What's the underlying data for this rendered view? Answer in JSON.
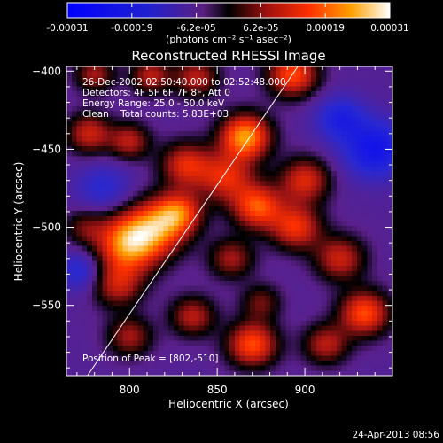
{
  "colorbar": {
    "tick_labels": [
      "-0.00031",
      "-0.00019",
      "-6.2e-05",
      "6.2e-05",
      "0.00019",
      "0.00031"
    ],
    "range": [
      -0.00031,
      0.00031
    ],
    "units_text": "(photons cm⁻² s⁻¹ asec⁻²)"
  },
  "chart_data": {
    "type": "heatmap",
    "title": "Reconstructed RHESSI Image",
    "xlabel": "Heliocentric X (arcsec)",
    "ylabel": "Heliocentric Y (arcsec)",
    "xlim": [
      764,
      950
    ],
    "ylim": [
      -595,
      -397
    ],
    "x_ticks": [
      800,
      850,
      900
    ],
    "y_ticks": [
      -400,
      -450,
      -500,
      -550
    ],
    "limb_line": {
      "from": [
        776,
        -595
      ],
      "to": [
        896,
        -397
      ]
    },
    "peak": [
      802,
      -510
    ],
    "blobs": [
      {
        "x": 800,
        "y": -510,
        "w": 1.0,
        "s": 13
      },
      {
        "x": 818,
        "y": -498,
        "w": 0.7,
        "s": 12
      },
      {
        "x": 793,
        "y": -537,
        "w": 0.5,
        "s": 10
      },
      {
        "x": 866,
        "y": -442,
        "w": 0.95,
        "s": 10
      },
      {
        "x": 855,
        "y": -468,
        "w": 0.6,
        "s": 11
      },
      {
        "x": 893,
        "y": -402,
        "w": 0.75,
        "s": 10
      },
      {
        "x": 838,
        "y": -404,
        "w": 0.5,
        "s": 9
      },
      {
        "x": 812,
        "y": -403,
        "w": 0.5,
        "s": 8
      },
      {
        "x": 780,
        "y": -402,
        "w": 0.45,
        "s": 8
      },
      {
        "x": 777,
        "y": -440,
        "w": 0.55,
        "s": 9
      },
      {
        "x": 800,
        "y": -445,
        "w": 0.5,
        "s": 8
      },
      {
        "x": 832,
        "y": -460,
        "w": 0.6,
        "s": 10
      },
      {
        "x": 829,
        "y": -490,
        "w": 0.55,
        "s": 9
      },
      {
        "x": 873,
        "y": -487,
        "w": 0.75,
        "s": 10
      },
      {
        "x": 900,
        "y": -470,
        "w": 0.6,
        "s": 10
      },
      {
        "x": 895,
        "y": -500,
        "w": 0.65,
        "s": 10
      },
      {
        "x": 920,
        "y": -520,
        "w": 0.55,
        "s": 10
      },
      {
        "x": 858,
        "y": -520,
        "w": 0.45,
        "s": 9
      },
      {
        "x": 800,
        "y": -570,
        "w": 0.45,
        "s": 9
      },
      {
        "x": 836,
        "y": -557,
        "w": 0.5,
        "s": 9
      },
      {
        "x": 870,
        "y": -575,
        "w": 0.75,
        "s": 10
      },
      {
        "x": 912,
        "y": -575,
        "w": 0.5,
        "s": 9
      },
      {
        "x": 934,
        "y": -555,
        "w": 0.75,
        "s": 10
      },
      {
        "x": 875,
        "y": -548,
        "w": 0.35,
        "s": 8
      },
      {
        "x": 774,
        "y": -500,
        "w": 0.3,
        "s": 8
      },
      {
        "x": 785,
        "y": -475,
        "w": -0.3,
        "s": 11
      },
      {
        "x": 940,
        "y": -450,
        "w": -0.55,
        "s": 13
      },
      {
        "x": 920,
        "y": -430,
        "w": -0.4,
        "s": 10
      },
      {
        "x": 772,
        "y": -528,
        "w": -0.35,
        "s": 9
      }
    ]
  },
  "info": {
    "line1": "26-Dec-2002 02:50:40.000 to 02:52:48.000",
    "line2": "Detectors: 4F 5F 6F 7F 8F, Att 0",
    "line3": "Energy Range: 25.0 - 50.0 keV",
    "line4": "Clean    Total counts: 5.83E+03"
  },
  "peak_label": "Position of Peak = [802,-510]",
  "timestamp": "24-Apr-2013 08:56"
}
